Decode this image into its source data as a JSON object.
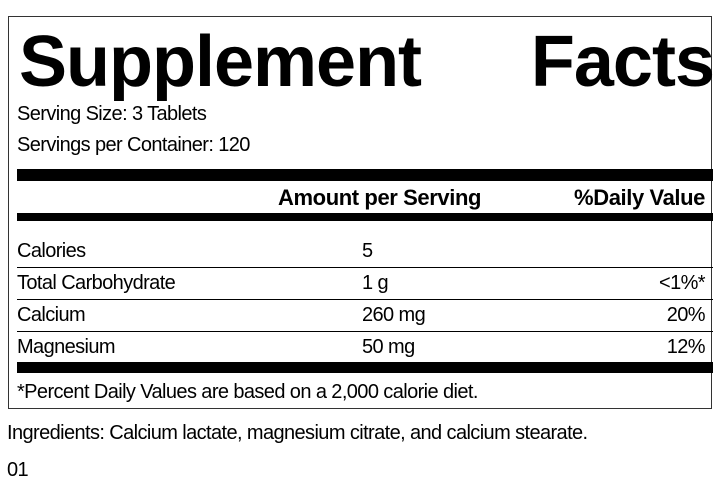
{
  "title": [
    "Supplement",
    "Facts"
  ],
  "serving_size": "Serving Size: 3 Tablets",
  "servings_per_container": "Servings per Container: 120",
  "header": {
    "amount": "Amount per Serving",
    "dv": "%Daily Value"
  },
  "rows": [
    {
      "name": "Calories",
      "amount": "5",
      "dv": ""
    },
    {
      "name": "Total Carbohydrate",
      "amount": "1 g",
      "dv": "<1%*"
    },
    {
      "name": "Calcium",
      "amount": "260 mg",
      "dv": "20%"
    },
    {
      "name": "Magnesium",
      "amount": "50 mg",
      "dv": "12%"
    }
  ],
  "footnote": "*Percent Daily Values are based on a 2,000 calorie diet.",
  "ingredients": "Ingredients: Calcium lactate, magnesium citrate, and calcium stearate.",
  "code": "01"
}
